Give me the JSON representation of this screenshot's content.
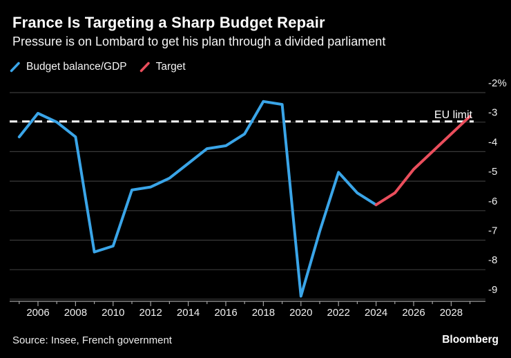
{
  "header": {
    "title": "France Is Targeting a Sharp Budget Repair",
    "subtitle": "Pressure is on Lombard to get his plan through a divided parliament"
  },
  "legend": {
    "items": [
      {
        "label": "Budget balance/GDP",
        "color": "#3AA5E8"
      },
      {
        "label": "Target",
        "color": "#EA4E5C"
      }
    ]
  },
  "footer": {
    "source": "Source: Insee, French government",
    "brand": "Bloomberg"
  },
  "colors": {
    "background": "#000000",
    "gridline": "#3a3a3a",
    "axis": "#a0a0a0",
    "label_text": "#f0f0f0",
    "eu_limit_line": "#ffffff"
  },
  "chart_data": {
    "type": "line",
    "title": "France Is Targeting a Sharp Budget Repair",
    "subtitle": "Pressure is on Lombard to get his plan through a divided parliament",
    "grid": true,
    "legend_position": "top-left",
    "x_axis": {
      "range": [
        2005,
        2029
      ],
      "labeled_ticks": [
        2006,
        2008,
        2010,
        2012,
        2014,
        2016,
        2018,
        2020,
        2022,
        2024,
        2026,
        2028
      ]
    },
    "y_axis": {
      "range": [
        -9,
        -2
      ],
      "ticks": [
        {
          "value": -2,
          "label": "-2%"
        },
        {
          "value": -3,
          "label": "-3"
        },
        {
          "value": -4,
          "label": "-4"
        },
        {
          "value": -5,
          "label": "-5"
        },
        {
          "value": -6,
          "label": "-6"
        },
        {
          "value": -7,
          "label": "-7"
        },
        {
          "value": -8,
          "label": "-8"
        },
        {
          "value": -9,
          "label": "-9"
        }
      ]
    },
    "eu_limit": {
      "label": "EU limit",
      "value": -3
    },
    "series": [
      {
        "name": "Budget balance/GDP",
        "color": "#3AA5E8",
        "x": [
          2005,
          2006,
          2007,
          2008,
          2009,
          2010,
          2011,
          2012,
          2013,
          2014,
          2015,
          2016,
          2017,
          2018,
          2019,
          2020,
          2021,
          2022,
          2023,
          2024
        ],
        "values": [
          -3.5,
          -2.7,
          -3.0,
          -3.5,
          -7.4,
          -7.2,
          -5.3,
          -5.2,
          -4.9,
          -4.4,
          -3.9,
          -3.8,
          -3.4,
          -2.3,
          -2.4,
          -8.9,
          -6.7,
          -4.7,
          -5.4,
          -5.8
        ]
      },
      {
        "name": "Target",
        "color": "#EA4E5C",
        "x": [
          2024,
          2025,
          2026,
          2027,
          2028,
          2029
        ],
        "values": [
          -5.8,
          -5.4,
          -4.6,
          -4.0,
          -3.4,
          -2.8
        ]
      }
    ]
  }
}
